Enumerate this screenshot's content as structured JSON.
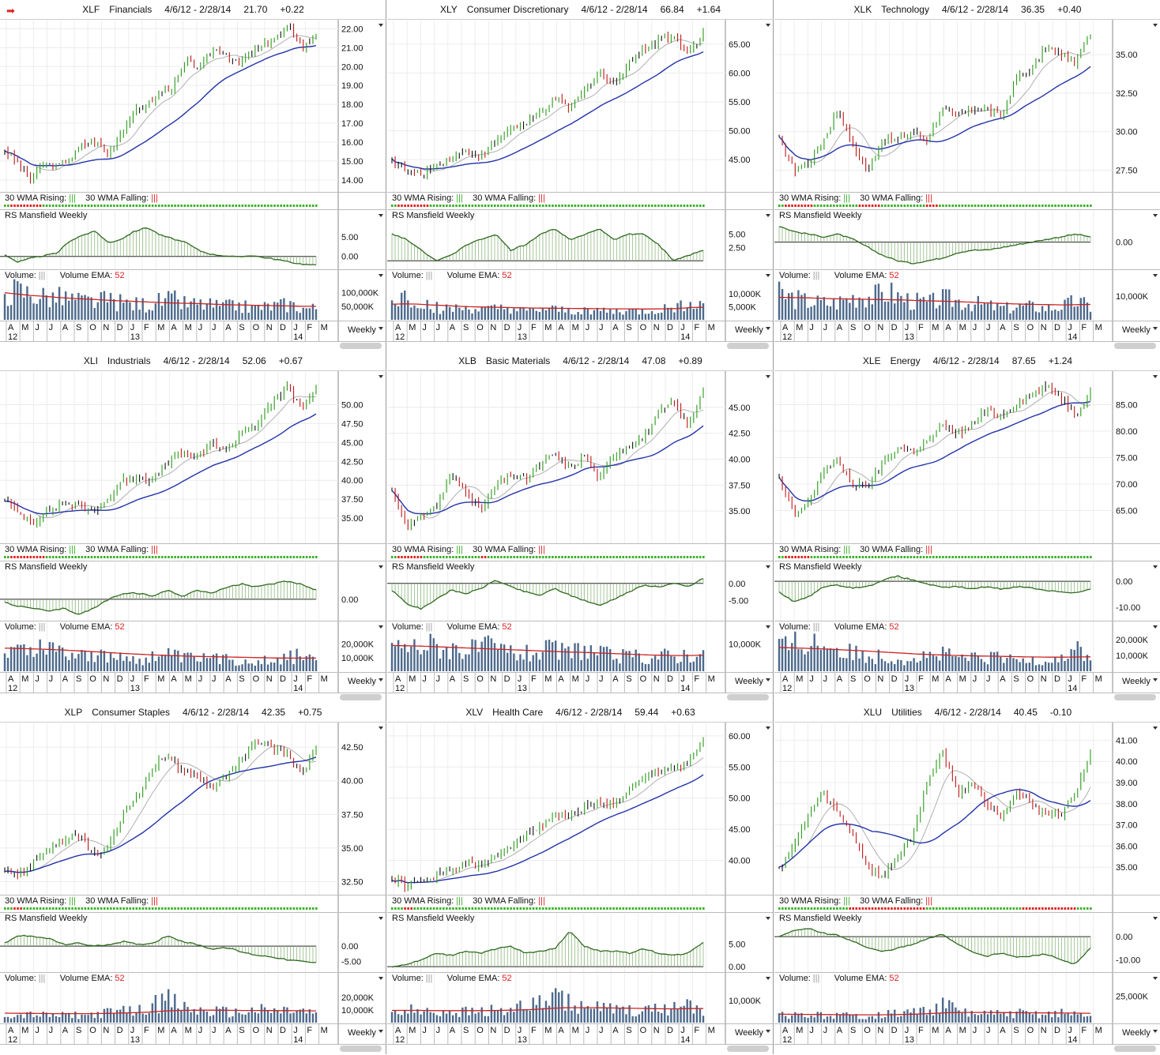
{
  "common": {
    "date_range": "4/6/12 - 2/28/14",
    "wma_rising_label": "30 WMA Rising:",
    "wma_falling_label": "30 WMA Falling:",
    "rs_label": "RS Mansfield Weekly",
    "volume_label": "Volume:",
    "volume_ema_label": "Volume EMA:",
    "volume_ema_value": "52",
    "bars_glyph": "|||",
    "period": "Weekly",
    "months": [
      "A",
      "M",
      "J",
      "J",
      "A",
      "S",
      "O",
      "N",
      "D",
      "J",
      "F",
      "M",
      "A",
      "M",
      "J",
      "J",
      "A",
      "S",
      "O",
      "N",
      "D",
      "J",
      "F",
      "M"
    ],
    "years": [
      "12",
      "13",
      "14"
    ],
    "colors": {
      "price_up": "#2a9a1a",
      "price_down": "#c01818",
      "price_neutral": "#111111",
      "ma30": "#2233aa",
      "ma10": "#b0b0b0",
      "rs": "#2f6a1e",
      "volume": "#4d6a8c",
      "ema": "#cc2222",
      "rising": "#3bb02a",
      "falling": "#e02020"
    }
  },
  "header_icon": "red-arrow-icon",
  "chart_data": [
    {
      "type": "line",
      "symbol": "XLF",
      "name": "Financials",
      "last": "21.70",
      "change": "+0.22",
      "price_ticks": [
        "22.00",
        "21.00",
        "20.00",
        "19.00",
        "18.00",
        "17.00",
        "16.00",
        "15.00",
        "14.00"
      ],
      "price_range": [
        13.7,
        22.1
      ],
      "price_path": [
        15.6,
        14.9,
        14.0,
        14.8,
        14.7,
        15.1,
        15.9,
        16.0,
        15.4,
        16.6,
        17.6,
        18.0,
        18.6,
        19.0,
        20.3,
        19.9,
        20.9,
        20.7,
        20.1,
        20.8,
        21.1,
        21.6,
        22.0,
        21.0,
        21.7
      ],
      "rs_ticks": [
        "5.00",
        "0.00"
      ],
      "rs_range": [
        -2.5,
        8.5
      ],
      "rs_path": [
        0.5,
        -1.5,
        -0.5,
        0.2,
        0.8,
        4.0,
        5.5,
        6.5,
        3.5,
        4.5,
        6.5,
        7.5,
        5.5,
        4.5,
        3.5,
        1.5,
        0.5,
        0.2,
        -0.2,
        0.3,
        -0.3,
        -0.8,
        -1.5,
        -2.0,
        -2.3
      ],
      "vol_ticks": [
        "100,000K",
        "50,000K"
      ],
      "vol_max": 140000,
      "vol_level": [
        115000,
        110000,
        100000,
        90000,
        85000,
        80000,
        70000,
        70000,
        75000,
        65000,
        60000,
        60000,
        70000,
        75000,
        60000,
        60000,
        55000,
        50000,
        55000,
        45000,
        50000,
        55000,
        60000,
        45000,
        45000
      ],
      "ema": [
        100000,
        95000,
        90000,
        87000,
        83000,
        80000,
        77000,
        75000,
        72000,
        70000,
        68000,
        66000,
        64000,
        62000,
        61000,
        60000,
        58000,
        56000,
        55000,
        54000,
        53000,
        52000,
        51000,
        50000,
        50000
      ]
    },
    {
      "type": "line",
      "symbol": "XLY",
      "name": "Consumer Discretionary",
      "last": "66.84",
      "change": "+1.64",
      "price_ticks": [
        "65.00",
        "60.00",
        "55.00",
        "50.00",
        "45.00"
      ],
      "price_range": [
        40.5,
        68
      ],
      "price_path": [
        45.0,
        43.0,
        42.5,
        44.0,
        45.5,
        46.5,
        45.5,
        48.0,
        50.5,
        51.0,
        53.0,
        55.5,
        54.0,
        57.0,
        60.0,
        58.0,
        62.0,
        64.0,
        66.0,
        66.5,
        63.5,
        66.84
      ],
      "rs_ticks": [
        "5.00",
        "2.50"
      ],
      "rs_range": [
        -1,
        7
      ],
      "rs_path": [
        5,
        4,
        2,
        0,
        1,
        3,
        4,
        5,
        2,
        3,
        5,
        6,
        4,
        5,
        6,
        4,
        5,
        5,
        3,
        0,
        1,
        2
      ],
      "vol_ticks": [
        "10,000K",
        "5,000K"
      ],
      "vol_max": 14500,
      "vol_level": [
        6500,
        9000,
        7500,
        5000,
        4500,
        4000,
        4500,
        3500,
        4000,
        4500,
        3000,
        3500,
        4000,
        3500,
        3000,
        4000,
        3500,
        3000,
        3500,
        3000,
        3500,
        4000,
        5000,
        8000,
        5000
      ],
      "ema": [
        6000,
        6100,
        6000,
        5700,
        5500,
        5200,
        5000,
        4900,
        4800,
        4700,
        4600,
        4500,
        4450,
        4400,
        4350,
        4300,
        4250,
        4200,
        4200,
        4150,
        4150,
        4200,
        4300,
        4700,
        4800
      ]
    },
    {
      "type": "line",
      "symbol": "XLK",
      "name": "Technology",
      "last": "36.35",
      "change": "+0.40",
      "price_ticks": [
        "35.00",
        "32.50",
        "30.00",
        "27.50"
      ],
      "price_range": [
        26.5,
        36.8
      ],
      "price_path": [
        29.5,
        27.5,
        28.0,
        29.5,
        31.5,
        29.0,
        27.5,
        29.5,
        29.5,
        30.0,
        29.5,
        31.5,
        31.0,
        31.5,
        31.5,
        31.0,
        33.5,
        34.0,
        35.5,
        35.0,
        34.5,
        36.35
      ],
      "rs_ticks": [
        "0.00"
      ],
      "rs_range": [
        -4.5,
        3.5
      ],
      "rs_path": [
        3.0,
        2.0,
        1.5,
        1.0,
        1.5,
        0.5,
        -1.0,
        -2.5,
        -3.5,
        -4.0,
        -3.5,
        -3.0,
        -2.0,
        -1.5,
        -1.5,
        -1.0,
        -0.5,
        0.0,
        0.5,
        1.0,
        1.5,
        1.0
      ],
      "vol_ticks": [
        "10,000K"
      ],
      "vol_max": 16000,
      "vol_level": [
        11000,
        9500,
        8000,
        7500,
        7000,
        9000,
        11000,
        10000,
        12000,
        9500,
        8000,
        7000,
        9000,
        8500,
        7500,
        6500,
        5500,
        5000,
        6000,
        5500,
        5000,
        6000,
        8000,
        5500
      ],
      "ema": [
        9500,
        9400,
        9300,
        9100,
        8900,
        8800,
        8700,
        8600,
        8500,
        8400,
        8200,
        8000,
        7900,
        7700,
        7500,
        7200,
        7000,
        6800,
        6600,
        6500,
        6400,
        6300,
        6400,
        6500
      ]
    },
    {
      "type": "line",
      "symbol": "XLI",
      "name": "Industrials",
      "last": "52.06",
      "change": "+0.67",
      "price_ticks": [
        "50.00",
        "47.50",
        "45.00",
        "42.50",
        "40.00",
        "37.50",
        "35.00"
      ],
      "price_range": [
        32.5,
        53.5
      ],
      "price_path": [
        37.5,
        35.5,
        34.5,
        36.0,
        37.0,
        36.5,
        36.0,
        37.5,
        40.0,
        40.5,
        40.0,
        42.5,
        43.5,
        43.0,
        45.0,
        44.0,
        46.5,
        47.5,
        50.0,
        52.5,
        49.5,
        52.06
      ],
      "rs_ticks": [
        "0.00"
      ],
      "rs_range": [
        -3,
        4
      ],
      "rs_path": [
        -0.5,
        -1.2,
        -1.5,
        -2.0,
        -1.5,
        -2.5,
        -1.5,
        0.0,
        1.0,
        1.0,
        0.5,
        1.5,
        0.5,
        1.5,
        1.0,
        2.0,
        2.5,
        2.0,
        2.5,
        3.0,
        2.5,
        1.5
      ],
      "vol_ticks": [
        "20,000K",
        "10,000K"
      ],
      "vol_max": 28000,
      "vol_level": [
        18000,
        17000,
        16000,
        19000,
        17000,
        15000,
        13000,
        11000,
        10000,
        11000,
        9000,
        11000,
        12000,
        10000,
        9000,
        10000,
        9000,
        8500,
        8000,
        9000,
        9000,
        10000,
        14000,
        8000
      ],
      "ema": [
        17000,
        16800,
        16500,
        16200,
        15800,
        15300,
        14800,
        14200,
        13600,
        13000,
        12500,
        12000,
        11700,
        11300,
        11000,
        10800,
        10600,
        10400,
        10200,
        10000,
        9800,
        9700,
        9700,
        9700
      ]
    },
    {
      "type": "line",
      "symbol": "XLB",
      "name": "Basic Materials",
      "last": "47.08",
      "change": "+0.89",
      "price_ticks": [
        "45.00",
        "42.50",
        "40.00",
        "37.50",
        "35.00"
      ],
      "price_range": [
        32.5,
        47.8
      ],
      "price_path": [
        37.0,
        33.5,
        34.5,
        35.5,
        38.5,
        37.0,
        35.0,
        37.5,
        38.5,
        38.0,
        39.5,
        40.5,
        39.0,
        40.5,
        38.0,
        40.5,
        41.5,
        42.0,
        44.5,
        45.5,
        43.0,
        47.08
      ],
      "rs_ticks": [
        "0.00",
        "-5.00"
      ],
      "rs_range": [
        -10,
        2.5
      ],
      "rs_path": [
        -2.0,
        -6.0,
        -7.5,
        -4.5,
        -2.0,
        -3.0,
        -1.5,
        1.0,
        -1.0,
        -2.5,
        -3.5,
        -1.5,
        -3.5,
        -5.0,
        -6.5,
        -4.5,
        -2.5,
        -0.5,
        -1.0,
        0.0,
        -1.0,
        1.5
      ],
      "vol_ticks": [
        "10,000K"
      ],
      "vol_max": 14000,
      "vol_level": [
        10000,
        9000,
        9500,
        10000,
        9000,
        8500,
        8000,
        9000,
        8000,
        7000,
        6500,
        7500,
        8000,
        6500,
        9000,
        7000,
        6000,
        5500,
        5500,
        5000,
        6000,
        5500,
        7000,
        5500
      ],
      "ema": [
        9500,
        9400,
        9300,
        9100,
        8900,
        8700,
        8500,
        8300,
        8100,
        7900,
        7700,
        7500,
        7300,
        7100,
        7000,
        6800,
        6600,
        6400,
        6200,
        6000,
        5900,
        5800,
        5800,
        5900
      ]
    },
    {
      "type": "line",
      "symbol": "XLE",
      "name": "Energy",
      "last": "87.65",
      "change": "+1.24",
      "price_ticks": [
        "85.00",
        "80.00",
        "75.00",
        "70.00",
        "65.00"
      ],
      "price_range": [
        60,
        90
      ],
      "price_path": [
        71.0,
        64.0,
        66.5,
        73.0,
        74.0,
        70.0,
        69.5,
        74.0,
        77.0,
        76.0,
        78.0,
        81.0,
        79.5,
        81.0,
        84.0,
        83.0,
        85.0,
        87.0,
        88.5,
        86.5,
        83.0,
        87.65
      ],
      "rs_ticks": [
        "0.00",
        "-10.00"
      ],
      "rs_range": [
        -14,
        2.5
      ],
      "rs_path": [
        -4.0,
        -8.0,
        -6.0,
        -2.0,
        -1.5,
        -2.5,
        -2.0,
        0.5,
        2.0,
        0.5,
        -1.0,
        -2.5,
        -2.0,
        -3.0,
        -2.0,
        -3.0,
        -2.0,
        -2.5,
        -3.5,
        -4.0,
        -4.5,
        -3.0
      ],
      "vol_ticks": [
        "20,000K",
        "10,000K"
      ],
      "vol_max": 24000,
      "vol_level": [
        15000,
        17000,
        19000,
        18000,
        16000,
        12000,
        11000,
        10000,
        9500,
        8000,
        9000,
        10000,
        11000,
        9000,
        8500,
        8000,
        9000,
        7500,
        7000,
        8000,
        7500,
        10000,
        14000,
        9000
      ],
      "ema": [
        15000,
        14800,
        14500,
        14200,
        13800,
        13400,
        13000,
        12500,
        12000,
        11500,
        11000,
        10600,
        10300,
        10000,
        9800,
        9600,
        9500,
        9300,
        9100,
        9000,
        8900,
        8900,
        9000,
        9100
      ]
    },
    {
      "type": "line",
      "symbol": "XLP",
      "name": "Consumer Staples",
      "last": "42.35",
      "change": "+0.75",
      "price_ticks": [
        "42.50",
        "40.00",
        "37.50",
        "35.00",
        "32.50"
      ],
      "price_range": [
        32,
        43.8
      ],
      "price_path": [
        33.5,
        33.0,
        34.0,
        35.0,
        35.5,
        36.0,
        34.5,
        35.0,
        37.5,
        39.0,
        41.0,
        42.0,
        40.5,
        40.5,
        39.5,
        40.5,
        41.5,
        43.0,
        42.5,
        42.0,
        40.5,
        42.35
      ],
      "rs_ticks": [
        "0.00",
        "-5.00"
      ],
      "rs_range": [
        -7.5,
        6.5
      ],
      "rs_path": [
        1.0,
        3.5,
        3.0,
        2.5,
        0.5,
        1.0,
        0.0,
        0.5,
        1.5,
        0.5,
        1.0,
        3.5,
        1.5,
        0.5,
        -1.0,
        -0.5,
        -2.0,
        -3.0,
        -3.5,
        -4.5,
        -5.0,
        -5.5
      ],
      "vol_ticks": [
        "20,000K",
        "10,000K"
      ],
      "vol_max": 30000,
      "vol_level": [
        7000,
        6000,
        6500,
        6000,
        5500,
        6500,
        6000,
        7500,
        8500,
        9000,
        10000,
        14000,
        19000,
        13000,
        10000,
        9000,
        9000,
        8000,
        9500,
        10000,
        9000,
        10000,
        9000,
        7000
      ],
      "ema": [
        7500,
        7400,
        7300,
        7200,
        7100,
        7100,
        7100,
        7200,
        7400,
        7700,
        8000,
        8600,
        9300,
        9700,
        9800,
        9900,
        9800,
        9700,
        9600,
        9600,
        9500,
        9500,
        9400,
        9300
      ]
    },
    {
      "type": "line",
      "symbol": "XLV",
      "name": "Health Care",
      "last": "59.44",
      "change": "+0.63",
      "price_ticks": [
        "60.00",
        "55.00",
        "50.00",
        "45.00",
        "40.00"
      ],
      "price_range": [
        35.5,
        61
      ],
      "price_path": [
        37.0,
        36.0,
        36.5,
        37.5,
        38.5,
        39.5,
        39.0,
        40.5,
        42.5,
        44.0,
        45.5,
        47.5,
        47.0,
        48.5,
        49.5,
        49.0,
        51.0,
        53.0,
        54.5,
        55.0,
        55.5,
        59.44
      ],
      "rs_ticks": [
        "5.00",
        "0.00"
      ],
      "rs_range": [
        -0.5,
        9
      ],
      "rs_path": [
        0.0,
        0.5,
        1.5,
        3.0,
        2.5,
        3.5,
        3.0,
        4.0,
        4.5,
        3.0,
        3.5,
        4.0,
        8.0,
        4.5,
        3.5,
        3.5,
        3.0,
        4.0,
        3.0,
        2.5,
        3.0,
        5.5
      ],
      "vol_ticks": [
        "10,000K"
      ],
      "vol_max": 17000,
      "vol_level": [
        5000,
        6000,
        5500,
        5000,
        6000,
        5500,
        5000,
        6000,
        5500,
        6500,
        7000,
        9000,
        11000,
        9000,
        7000,
        6500,
        6000,
        5500,
        5000,
        5500,
        6000,
        7000,
        9000,
        6000
      ],
      "ema": [
        5500,
        5500,
        5500,
        5400,
        5400,
        5400,
        5400,
        5400,
        5500,
        5600,
        5800,
        6100,
        6500,
        6700,
        6700,
        6700,
        6600,
        6500,
        6400,
        6300,
        6200,
        6200,
        6300,
        6300
      ]
    },
    {
      "type": "line",
      "symbol": "XLU",
      "name": "Utilities",
      "last": "40.45",
      "change": "-0.10",
      "price_ticks": [
        "41.00",
        "40.00",
        "39.00",
        "38.00",
        "37.00",
        "36.00",
        "35.00"
      ],
      "price_range": [
        34,
        41.5
      ],
      "price_path": [
        35.0,
        36.0,
        37.5,
        38.5,
        37.5,
        36.5,
        35.0,
        34.5,
        35.5,
        36.5,
        39.0,
        40.5,
        38.5,
        39.0,
        38.0,
        37.5,
        38.5,
        38.0,
        37.5,
        37.5,
        38.5,
        40.45
      ],
      "rs_ticks": [
        "0.00",
        "-10.00"
      ],
      "rs_range": [
        -14,
        4.5
      ],
      "rs_path": [
        0.0,
        2.5,
        3.5,
        1.5,
        0.5,
        -2.0,
        -5.0,
        -6.5,
        -5.0,
        -3.5,
        -1.0,
        1.0,
        -3.0,
        -6.5,
        -8.5,
        -7.0,
        -9.0,
        -8.5,
        -7.5,
        -10.0,
        -12.0,
        -5.0
      ],
      "vol_ticks": [
        "25,000K"
      ],
      "vol_max": 36000,
      "vol_level": [
        7000,
        7500,
        6500,
        7000,
        6500,
        7000,
        6000,
        7000,
        8000,
        9000,
        10500,
        12000,
        17000,
        13000,
        9000,
        8500,
        8000,
        8500,
        9000,
        8000,
        8500,
        9000,
        8000,
        7000
      ],
      "ema": [
        8000,
        7900,
        7800,
        7700,
        7600,
        7500,
        7400,
        7400,
        7500,
        7700,
        8000,
        8500,
        9200,
        9600,
        9700,
        9700,
        9600,
        9500,
        9400,
        9300,
        9200,
        9100,
        9000,
        8900
      ]
    }
  ]
}
